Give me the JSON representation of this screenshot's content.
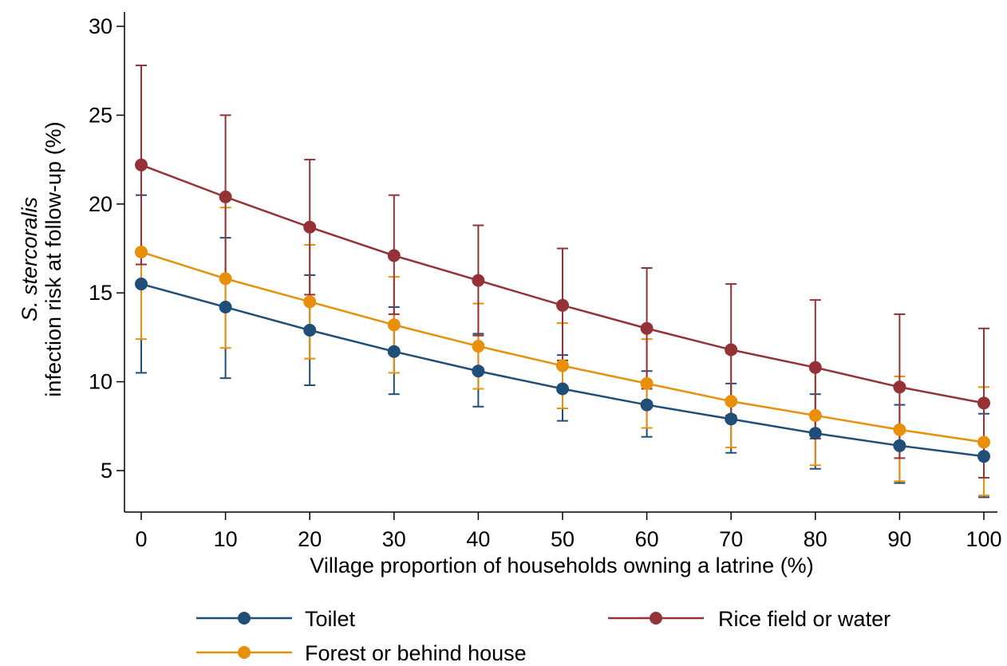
{
  "chart_data": {
    "type": "line",
    "x": [
      0,
      10,
      20,
      30,
      40,
      50,
      60,
      70,
      80,
      90,
      100
    ],
    "xlabel": "Village proportion of households owning a latrine (%)",
    "ylabel_italic": "S. stercoralis",
    "ylabel": "infection risk at follow-up (%)",
    "xlim": [
      0,
      100
    ],
    "ylim": [
      2.5,
      31
    ],
    "x_ticks": [
      0,
      10,
      20,
      30,
      40,
      50,
      60,
      70,
      80,
      90,
      100
    ],
    "y_ticks": [
      5,
      10,
      15,
      20,
      25,
      30
    ],
    "grid": false,
    "legend_position": "bottom",
    "series": [
      {
        "name": "Toilet",
        "color": "#1f4e79",
        "values": [
          15.5,
          14.2,
          12.9,
          11.7,
          10.6,
          9.6,
          8.7,
          7.9,
          7.1,
          6.4,
          5.8
        ],
        "lower": [
          10.5,
          10.2,
          9.8,
          9.3,
          8.6,
          7.8,
          6.9,
          6.0,
          5.1,
          4.3,
          3.5
        ],
        "upper": [
          20.5,
          18.1,
          16.0,
          14.2,
          12.7,
          11.5,
          10.6,
          9.9,
          9.3,
          8.7,
          8.2
        ]
      },
      {
        "name": "Rice field or water",
        "color": "#943237",
        "values": [
          22.2,
          20.4,
          18.7,
          17.1,
          15.7,
          14.3,
          13.0,
          11.8,
          10.8,
          9.7,
          8.8
        ],
        "lower": [
          16.6,
          15.8,
          14.9,
          13.8,
          12.6,
          11.2,
          9.6,
          8.1,
          6.8,
          5.7,
          4.6
        ],
        "upper": [
          27.8,
          25.0,
          22.5,
          20.5,
          18.8,
          17.5,
          16.4,
          15.5,
          14.6,
          13.8,
          13.0
        ]
      },
      {
        "name": "Forest or behind house",
        "color": "#e8900c",
        "values": [
          17.3,
          15.8,
          14.5,
          13.2,
          12.0,
          10.9,
          9.9,
          8.9,
          8.1,
          7.3,
          6.6
        ],
        "lower": [
          12.4,
          11.9,
          11.3,
          10.5,
          9.6,
          8.5,
          7.4,
          6.3,
          5.3,
          4.4,
          3.6
        ],
        "upper": [
          22.3,
          19.8,
          17.7,
          15.9,
          14.4,
          13.3,
          12.4,
          11.6,
          10.9,
          10.3,
          9.7
        ]
      }
    ],
    "legend": [
      {
        "label": "Toilet",
        "color": "#1f4e79"
      },
      {
        "label": "Rice field or water",
        "color": "#943237"
      },
      {
        "label": "Forest or behind house",
        "color": "#e8900c"
      }
    ]
  }
}
